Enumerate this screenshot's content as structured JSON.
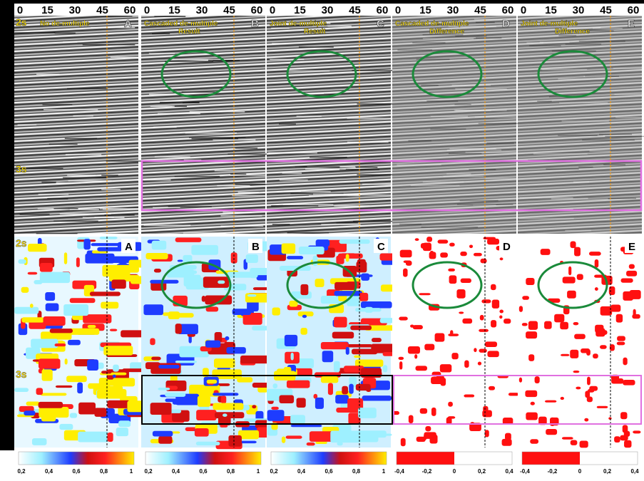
{
  "top_axis": {
    "ticks": [
      "0",
      "15",
      "30",
      "45",
      "60"
    ]
  },
  "time_labels": [
    "2s",
    "3s"
  ],
  "seismic_panels": [
    {
      "letter": "A",
      "title": "No de-multiple"
    },
    {
      "letter": "B",
      "title": "Cascaded de-multiple",
      "subtitle": "Result"
    },
    {
      "letter": "C",
      "title": "Joint de-multiple",
      "subtitle": "Result"
    },
    {
      "letter": "D",
      "title": "Cascaded de-multiple",
      "subtitle": "Difference"
    },
    {
      "letter": "E",
      "title": "Joint de-multiple",
      "subtitle": "Difference"
    }
  ],
  "similarity_panels": [
    {
      "letter": "A"
    },
    {
      "letter": "B"
    },
    {
      "letter": "C"
    },
    {
      "letter": "D"
    },
    {
      "letter": "E"
    }
  ],
  "colorbars": [
    {
      "ticks": [
        "0,2",
        "0,4",
        "0,6",
        "0,8",
        "1"
      ]
    },
    {
      "ticks": [
        "-0,4",
        "-0,2",
        "0",
        "0,2",
        "0,4"
      ]
    }
  ]
}
